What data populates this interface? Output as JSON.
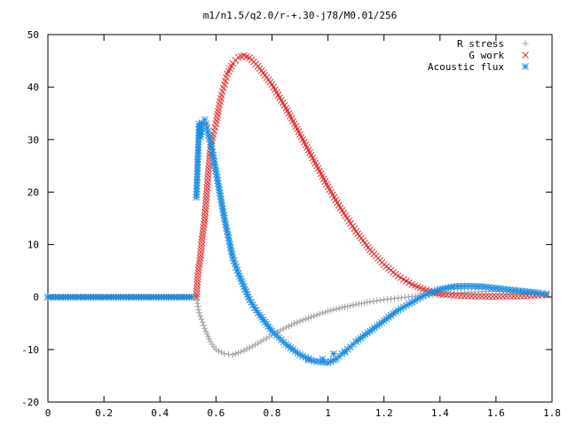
{
  "chart_data": {
    "type": "scatter",
    "title": "m1/n1.5/q2.0/r-+.30-j78/M0.01/256",
    "xlabel": "",
    "ylabel": "",
    "xlim": [
      0,
      1.8
    ],
    "ylim": [
      -20,
      50
    ],
    "xticks": [
      "0",
      "0.2",
      "0.4",
      "0.6",
      "0.8",
      "1",
      "1.2",
      "1.4",
      "1.6",
      "1.8"
    ],
    "yticks": [
      "-20",
      "-10",
      "0",
      "10",
      "20",
      "30",
      "40",
      "50"
    ],
    "grid": false,
    "legend": "top-right",
    "series": [
      {
        "name": "R stress",
        "marker": "plus",
        "color": "#a0a0a0",
        "points": [
          [
            0.53,
            0.0
          ],
          [
            0.54,
            -3.0
          ],
          [
            0.56,
            -6.0
          ],
          [
            0.58,
            -8.5
          ],
          [
            0.6,
            -10.0
          ],
          [
            0.63,
            -10.8
          ],
          [
            0.66,
            -11.0
          ],
          [
            0.7,
            -10.2
          ],
          [
            0.75,
            -8.8
          ],
          [
            0.8,
            -7.2
          ],
          [
            0.85,
            -5.8
          ],
          [
            0.9,
            -4.6
          ],
          [
            0.95,
            -3.6
          ],
          [
            1.0,
            -2.7
          ],
          [
            1.05,
            -2.0
          ],
          [
            1.1,
            -1.4
          ],
          [
            1.15,
            -0.9
          ],
          [
            1.2,
            -0.5
          ],
          [
            1.25,
            -0.2
          ],
          [
            1.3,
            0.1
          ],
          [
            1.35,
            0.3
          ],
          [
            1.4,
            0.5
          ],
          [
            1.45,
            0.7
          ],
          [
            1.5,
            0.9
          ],
          [
            1.55,
            1.0
          ],
          [
            1.6,
            1.1
          ],
          [
            1.65,
            1.0
          ],
          [
            1.7,
            0.8
          ],
          [
            1.75,
            0.5
          ],
          [
            1.78,
            0.3
          ]
        ]
      },
      {
        "name": "G work",
        "marker": "cross",
        "color": "#e03030",
        "points": [
          [
            0.53,
            0.0
          ],
          [
            0.535,
            4.0
          ],
          [
            0.545,
            8.0
          ],
          [
            0.55,
            11.0
          ],
          [
            0.56,
            15.0
          ],
          [
            0.565,
            18.5
          ],
          [
            0.57,
            22.0
          ],
          [
            0.575,
            25.0
          ],
          [
            0.58,
            28.0
          ],
          [
            0.59,
            31.0
          ],
          [
            0.6,
            33.0
          ],
          [
            0.61,
            36.0
          ],
          [
            0.62,
            38.5
          ],
          [
            0.63,
            40.5
          ],
          [
            0.64,
            42.5
          ],
          [
            0.66,
            44.5
          ],
          [
            0.68,
            45.7
          ],
          [
            0.7,
            46.0
          ],
          [
            0.72,
            45.6
          ],
          [
            0.75,
            44.0
          ],
          [
            0.8,
            40.5
          ],
          [
            0.85,
            36.0
          ],
          [
            0.9,
            31.0
          ],
          [
            0.95,
            26.0
          ],
          [
            1.0,
            21.0
          ],
          [
            1.05,
            16.5
          ],
          [
            1.1,
            12.5
          ],
          [
            1.15,
            9.0
          ],
          [
            1.2,
            6.2
          ],
          [
            1.25,
            4.0
          ],
          [
            1.3,
            2.4
          ],
          [
            1.35,
            1.3
          ],
          [
            1.4,
            0.6
          ],
          [
            1.45,
            0.3
          ],
          [
            1.5,
            0.15
          ],
          [
            1.55,
            0.1
          ],
          [
            1.6,
            0.1
          ],
          [
            1.65,
            0.15
          ],
          [
            1.7,
            0.2
          ],
          [
            1.75,
            0.3
          ],
          [
            1.78,
            0.4
          ]
        ]
      },
      {
        "name": "Acoustic flux",
        "marker": "star",
        "color": "#1e8fe0",
        "points": [
          [
            0.53,
            19.0
          ],
          [
            0.54,
            33.0
          ],
          [
            0.545,
            30.5
          ],
          [
            0.55,
            33.2
          ],
          [
            0.56,
            33.8
          ],
          [
            0.565,
            33.0
          ],
          [
            0.57,
            31.5
          ],
          [
            0.58,
            29.5
          ],
          [
            0.59,
            27.0
          ],
          [
            0.6,
            24.0
          ],
          [
            0.61,
            21.0
          ],
          [
            0.62,
            18.0
          ],
          [
            0.63,
            15.0
          ],
          [
            0.64,
            12.5
          ],
          [
            0.65,
            10.0
          ],
          [
            0.66,
            7.5
          ],
          [
            0.68,
            4.5
          ],
          [
            0.7,
            2.0
          ],
          [
            0.72,
            -0.5
          ],
          [
            0.75,
            -3.0
          ],
          [
            0.8,
            -6.5
          ],
          [
            0.85,
            -9.0
          ],
          [
            0.9,
            -11.0
          ],
          [
            0.95,
            -12.2
          ],
          [
            1.0,
            -12.5
          ],
          [
            1.03,
            -11.8
          ],
          [
            1.05,
            -10.8
          ],
          [
            1.08,
            -9.5
          ],
          [
            1.1,
            -8.5
          ],
          [
            1.15,
            -6.5
          ],
          [
            1.2,
            -4.5
          ],
          [
            1.25,
            -2.5
          ],
          [
            1.3,
            -1.0
          ],
          [
            1.35,
            0.5
          ],
          [
            1.4,
            1.5
          ],
          [
            1.45,
            2.0
          ],
          [
            1.5,
            2.1
          ],
          [
            1.55,
            2.0
          ],
          [
            1.6,
            1.7
          ],
          [
            1.65,
            1.4
          ],
          [
            1.7,
            1.1
          ],
          [
            1.75,
            0.8
          ],
          [
            1.78,
            0.6
          ],
          [
            1.06,
            -10.5
          ],
          [
            1.02,
            -10.8
          ],
          [
            0.98,
            -11.8
          ],
          [
            0.93,
            -12.0
          ]
        ]
      }
    ],
    "baseline_note_points": [
      [
        0.0,
        0.0
      ],
      [
        0.5,
        0.0
      ]
    ]
  }
}
